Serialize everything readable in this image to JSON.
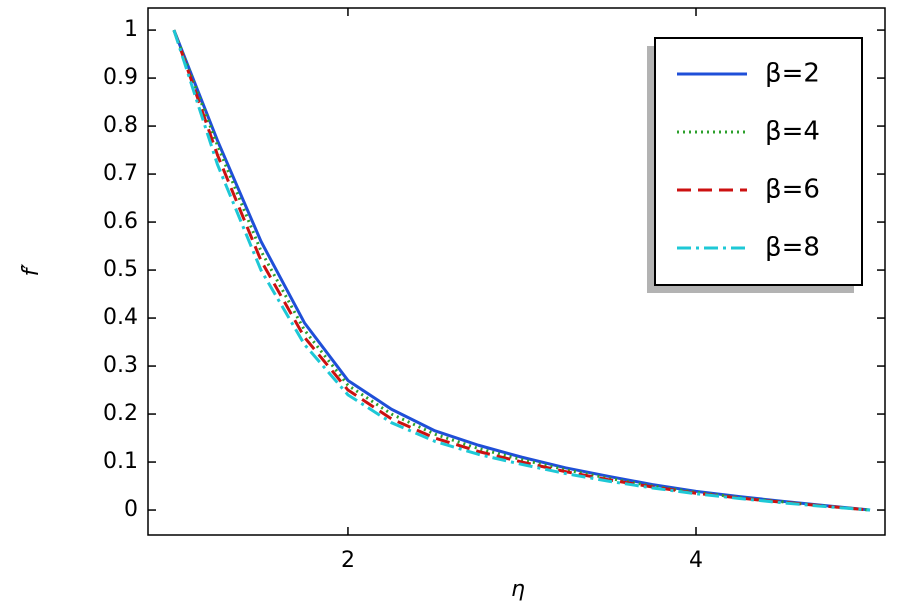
{
  "chart_data": {
    "type": "line",
    "x_label": "η",
    "y_label": "f′",
    "x": [
      1,
      1.25,
      1.5,
      1.75,
      2,
      2.25,
      2.5,
      2.75,
      3,
      3.25,
      3.5,
      3.75,
      4,
      4.25,
      4.5,
      4.75,
      5
    ],
    "series": [
      {
        "name": "β=2",
        "color": "#1f4fd8",
        "dash": "solid",
        "values": [
          1,
          0.77,
          0.56,
          0.39,
          0.27,
          0.21,
          0.165,
          0.135,
          0.11,
          0.088,
          0.07,
          0.053,
          0.039,
          0.028,
          0.018,
          0.009,
          0
        ]
      },
      {
        "name": "β=4",
        "color": "#2ca02c",
        "dash": "dotted",
        "values": [
          1,
          0.76,
          0.54,
          0.375,
          0.26,
          0.2,
          0.158,
          0.128,
          0.105,
          0.084,
          0.066,
          0.05,
          0.037,
          0.026,
          0.017,
          0.008,
          0
        ]
      },
      {
        "name": "β=6",
        "color": "#cc1111",
        "dash": "dashed",
        "values": [
          1,
          0.74,
          0.52,
          0.36,
          0.25,
          0.19,
          0.15,
          0.122,
          0.1,
          0.08,
          0.063,
          0.048,
          0.035,
          0.025,
          0.016,
          0.008,
          0
        ]
      },
      {
        "name": "β=8",
        "color": "#1ec8d6",
        "dash": "dashdot",
        "values": [
          1,
          0.72,
          0.5,
          0.345,
          0.24,
          0.182,
          0.143,
          0.116,
          0.095,
          0.076,
          0.06,
          0.046,
          0.034,
          0.024,
          0.015,
          0.007,
          0
        ]
      }
    ],
    "xlim": [
      0.851,
      5.086
    ],
    "xticks": [
      2,
      4
    ],
    "ylim": [
      -0.052,
      1.046
    ],
    "yticks": [
      0,
      0.1,
      0.2,
      0.3,
      0.4,
      0.5,
      0.6,
      0.7,
      0.8,
      0.9,
      1
    ],
    "legend": "upper right",
    "grid": false
  }
}
